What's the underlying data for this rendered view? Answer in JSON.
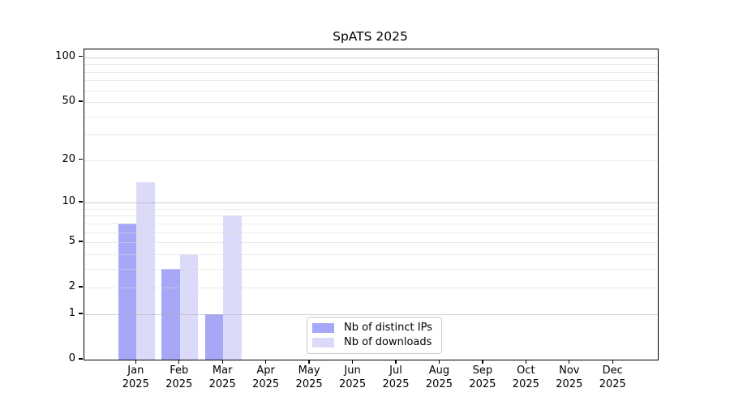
{
  "chart_data": {
    "type": "bar",
    "title": "SpATS 2025",
    "categories": [
      "Jan 2025",
      "Feb 2025",
      "Mar 2025",
      "Apr 2025",
      "May 2025",
      "Jun 2025",
      "Jul 2025",
      "Aug 2025",
      "Sep 2025",
      "Oct 2025",
      "Nov 2025",
      "Dec 2025"
    ],
    "series": [
      {
        "name": "Nb of distinct IPs",
        "color": "#a7a7f7",
        "values": [
          7,
          3,
          1,
          0,
          0,
          0,
          0,
          0,
          0,
          0,
          0,
          0
        ]
      },
      {
        "name": "Nb of downloads",
        "color": "#dbdbf9",
        "values": [
          14,
          4,
          8,
          0,
          0,
          0,
          0,
          0,
          0,
          0,
          0,
          0
        ]
      }
    ],
    "yscale": "log1p",
    "ylim": [
      0,
      113
    ],
    "yticks": [
      0,
      1,
      2,
      5,
      10,
      20,
      50,
      100
    ],
    "gridlines": {
      "major": [
        1,
        10,
        100
      ],
      "minor": [
        2,
        3,
        4,
        5,
        6,
        7,
        8,
        9,
        20,
        30,
        40,
        50,
        60,
        70,
        80,
        90
      ]
    },
    "grid": "on",
    "legend_position": "lower center, inside plot",
    "xlabel": "",
    "ylabel": ""
  },
  "colors": {
    "background": "#ffffff",
    "spine": "#000000",
    "major_grid": "#d2d2d2",
    "minor_grid": "#ececec"
  }
}
